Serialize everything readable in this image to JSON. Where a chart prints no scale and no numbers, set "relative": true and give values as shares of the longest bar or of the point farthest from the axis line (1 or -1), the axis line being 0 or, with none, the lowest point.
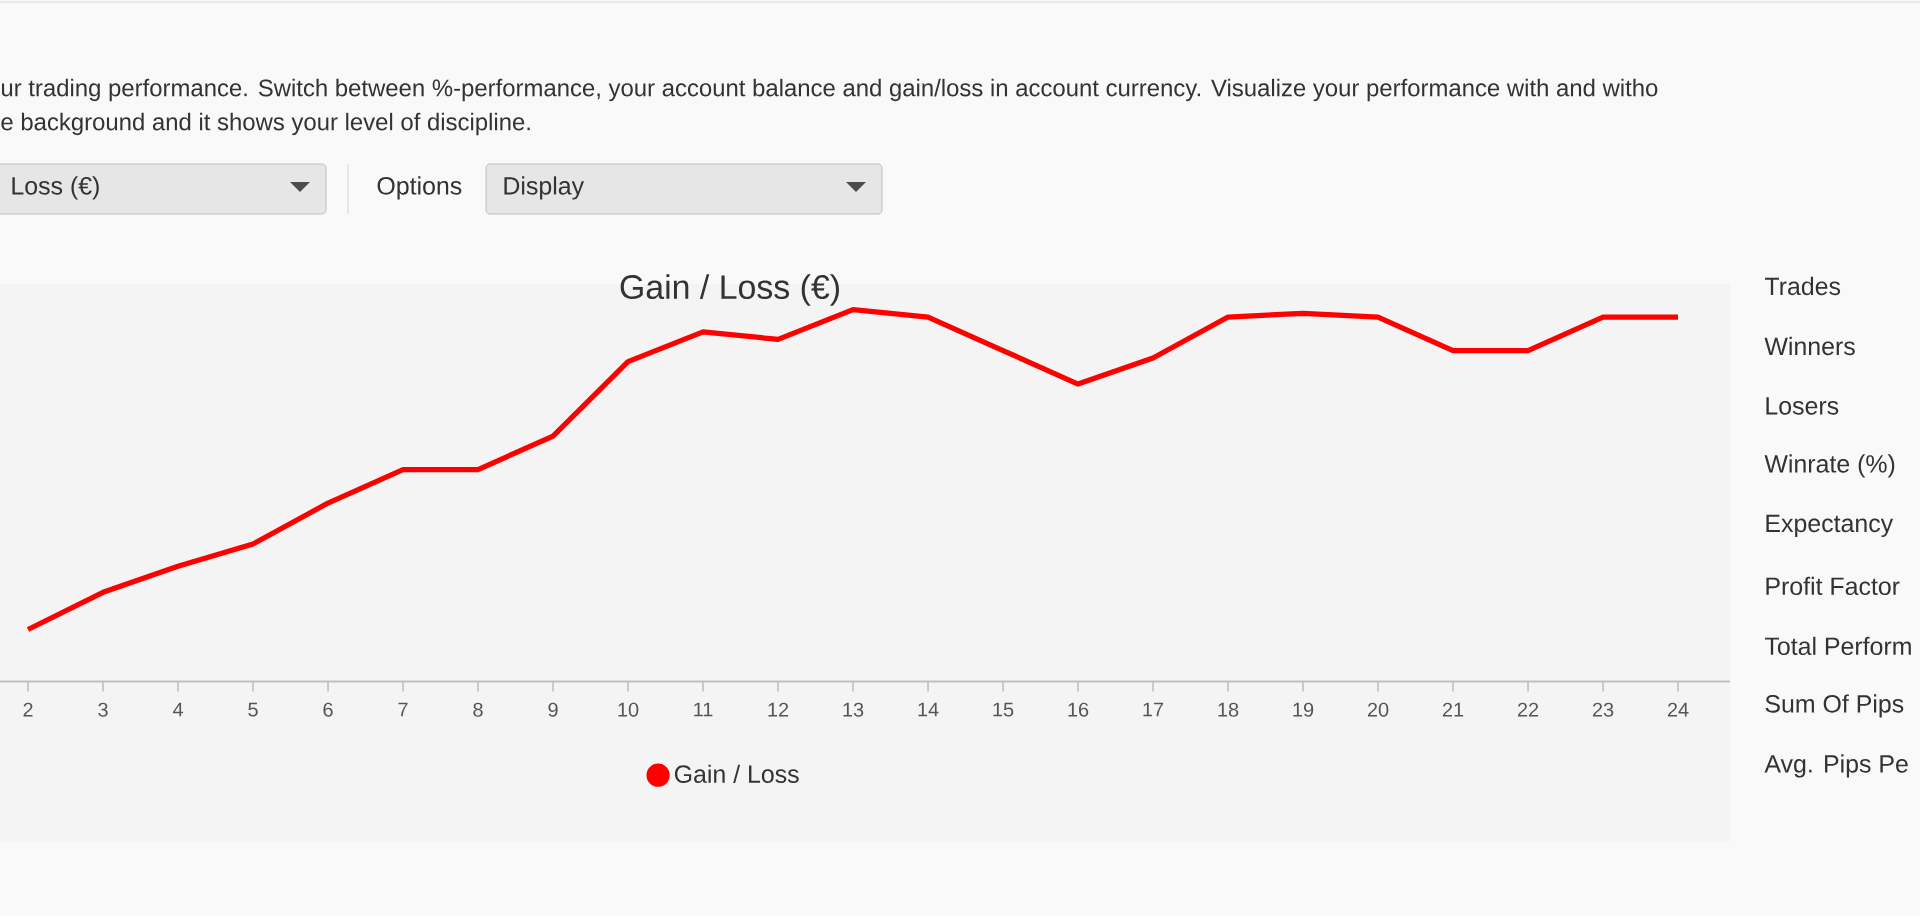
{
  "chart_data": {
    "type": "line",
    "title": "Gain / Loss (€)",
    "relative": true,
    "categories": [
      "2",
      "3",
      "4",
      "5",
      "6",
      "7",
      "8",
      "9",
      "10",
      "11",
      "12",
      "13",
      "14",
      "15",
      "16",
      "17",
      "18",
      "19",
      "20",
      "21",
      "22",
      "23",
      "24"
    ],
    "series": [
      {
        "name": "Gain / Loss",
        "color": "#ff0000",
        "values": [
          0.14,
          0.24,
          0.31,
          0.37,
          0.48,
          0.57,
          0.57,
          0.66,
          0.86,
          0.94,
          0.92,
          1,
          0.98,
          0.89,
          0.8,
          0.87,
          0.98,
          0.99,
          0.98,
          0.89,
          0.89,
          0.98,
          0.98
        ]
      }
    ],
    "legend": "bottom",
    "grid": false,
    "marker": "none",
    "line_style": "solid",
    "annotations": [
      "ur trading performance. Switch between %-performance, your account balance and gain/loss in account currency. Visualize your performance with and witho",
      "e background and it shows your level of discipline.",
      "Loss (€)",
      "Options",
      "Display",
      "Trades",
      "Winners",
      "Losers",
      "Winrate (%)",
      "Expectancy",
      "Profit Factor",
      "Total Perform",
      "Sum Of Pips",
      "Avg. Pips Pe"
    ]
  }
}
